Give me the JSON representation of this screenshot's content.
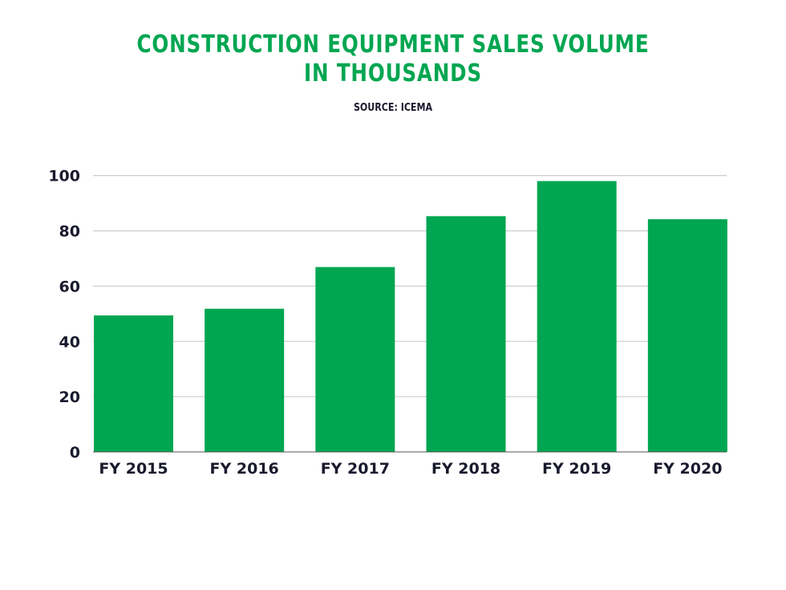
{
  "chart_data": {
    "type": "bar",
    "title": "CONSTRUCTION EQUIPMENT SALES VOLUME\nIN THOUSANDS",
    "title_lines": [
      "CONSTRUCTION EQUIPMENT SALES VOLUME",
      "IN THOUSANDS"
    ],
    "subtitle": "SOURCE: ICEMA",
    "categories": [
      "FY 2015",
      "FY 2016",
      "FY 2017",
      "FY 2018",
      "FY 2019",
      "FY 2020"
    ],
    "values": [
      49.4,
      51.8,
      66.9,
      85.3,
      98.0,
      84.2
    ],
    "xlabel": "",
    "ylabel": "",
    "ylim": [
      0,
      100
    ],
    "yticks": [
      0,
      20,
      40,
      60,
      80,
      100
    ],
    "grid": true,
    "legend": "none",
    "bar_color": "#00a651",
    "title_color": "#00a651",
    "text_color": "#1a1a2e"
  }
}
